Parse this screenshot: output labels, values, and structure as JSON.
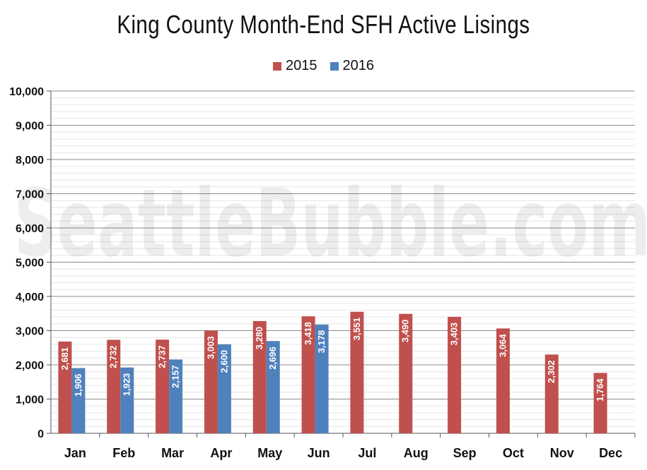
{
  "chart_data": {
    "type": "bar",
    "title": "King County Month-End SFH Active Lisings",
    "watermark": "SeattleBubble.com",
    "categories": [
      "Jan",
      "Feb",
      "Mar",
      "Apr",
      "May",
      "Jun",
      "Jul",
      "Aug",
      "Sep",
      "Oct",
      "Nov",
      "Dec"
    ],
    "series": [
      {
        "name": "2015",
        "color": "#c0504d",
        "values": [
          2681,
          2732,
          2737,
          3003,
          3280,
          3418,
          3551,
          3490,
          3403,
          3064,
          2302,
          1764
        ]
      },
      {
        "name": "2016",
        "color": "#4f81bd",
        "values": [
          1906,
          1923,
          2157,
          2600,
          2696,
          3178,
          null,
          null,
          null,
          null,
          null,
          null
        ]
      }
    ],
    "ylim": [
      0,
      10000
    ],
    "yticks": [
      "0",
      "1,000",
      "2,000",
      "3,000",
      "4,000",
      "5,000",
      "6,000",
      "7,000",
      "8,000",
      "9,000",
      "10,000"
    ],
    "data_labels": {
      "2015": [
        "2,681",
        "2,732",
        "2,737",
        "3,003",
        "3,280",
        "3,418",
        "3,551",
        "3,490",
        "3,403",
        "3,064",
        "2,302",
        "1,764"
      ],
      "2016": [
        "1,906",
        "1,923",
        "2,157",
        "2,600",
        "2,696",
        "3,178"
      ]
    },
    "legend_position": "top",
    "grid": true
  }
}
